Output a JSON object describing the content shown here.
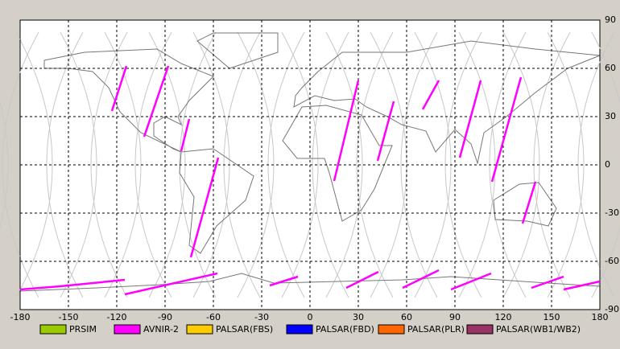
{
  "map": {
    "xlim": [
      -180,
      180
    ],
    "ylim": [
      -90,
      90
    ],
    "xticks": [
      -180,
      -150,
      -120,
      -90,
      -60,
      -30,
      0,
      30,
      60,
      90,
      120,
      150,
      180
    ],
    "yticks": [
      90,
      60,
      30,
      0,
      -30,
      -60,
      -90
    ],
    "grid": true
  },
  "legend": [
    {
      "label": "PRSIM",
      "color": "#99cc00"
    },
    {
      "label": "AVNIR-2",
      "color": "#ff00ff"
    },
    {
      "label": "PALSAR(FBS)",
      "color": "#ffcc00"
    },
    {
      "label": "PALSAR(FBD)",
      "color": "#0000ff"
    },
    {
      "label": "PALSAR(PLR)",
      "color": "#ff6600"
    },
    {
      "label": "PALSAR(WB1/WB2)",
      "color": "#993366"
    }
  ]
}
